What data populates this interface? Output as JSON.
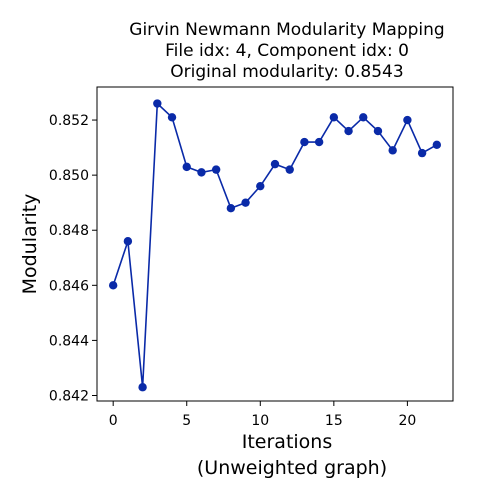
{
  "chart_data": {
    "type": "line",
    "title_lines": [
      "Girvin Newmann Modularity Mapping",
      "File idx: 4, Component idx: 0",
      "Original modularity: 0.8543"
    ],
    "xlabel_lines": [
      "Iterations",
      "(Unweighted graph)"
    ],
    "ylabel": "Modularity",
    "xlim": [
      -1.1,
      23.1
    ],
    "ylim": [
      0.8418,
      0.8532
    ],
    "xticks": [
      0,
      5,
      10,
      15,
      20
    ],
    "yticks": [
      0.842,
      0.844,
      0.846,
      0.848,
      0.85,
      0.852
    ],
    "ytick_labels": [
      "0.842",
      "0.844",
      "0.846",
      "0.848",
      "0.850",
      "0.852"
    ],
    "grid": false,
    "series": [
      {
        "color": "#0a2aa8",
        "marker": "circle",
        "x": [
          0,
          1,
          2,
          3,
          4,
          5,
          6,
          7,
          8,
          9,
          10,
          11,
          12,
          13,
          14,
          15,
          16,
          17,
          18,
          19,
          20,
          21,
          22
        ],
        "y": [
          0.846,
          0.8476,
          0.8423,
          0.8526,
          0.8521,
          0.8503,
          0.8501,
          0.8502,
          0.8488,
          0.849,
          0.8496,
          0.8504,
          0.8502,
          0.8512,
          0.8512,
          0.8521,
          0.8516,
          0.8521,
          0.8516,
          0.8509,
          0.852,
          0.8508,
          0.8511
        ]
      }
    ]
  }
}
